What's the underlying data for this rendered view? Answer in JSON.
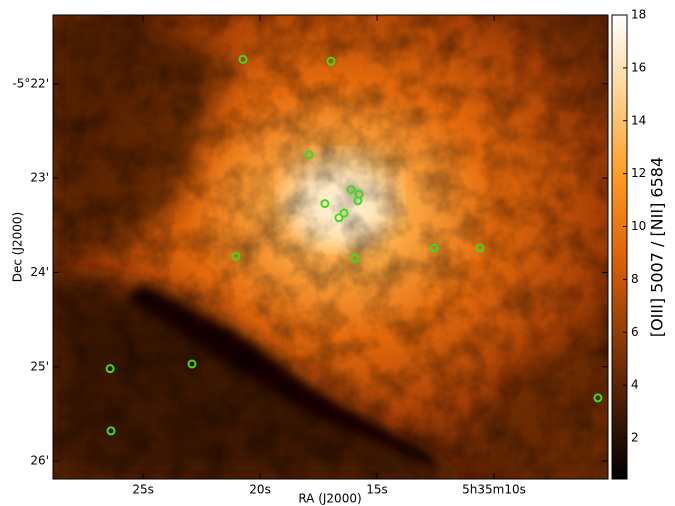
{
  "chart_data": {
    "type": "image",
    "x_label": "RA (J2000)",
    "y_label": "Dec (J2000)",
    "colorbar_label": "[OIII] 5007 / [NII] 6584",
    "xlim": [
      28.85,
      5.13
    ],
    "xticks": [
      {
        "value": 25,
        "label": "25s"
      },
      {
        "value": 20,
        "label": "20s"
      },
      {
        "value": 15,
        "label": "15s"
      },
      {
        "value": 10,
        "label": "5h35m10s"
      }
    ],
    "ylim": [
      -26.19,
      -21.27
    ],
    "yticks": [
      {
        "value": -22,
        "label": "-5°22'"
      },
      {
        "value": -23,
        "label": "23'"
      },
      {
        "value": -24,
        "label": "24'"
      },
      {
        "value": -25,
        "label": "25'"
      },
      {
        "value": -26,
        "label": "26'"
      }
    ],
    "clim": [
      0.45,
      18
    ],
    "cticks": [
      2,
      4,
      6,
      8,
      10,
      12,
      14,
      16,
      18
    ],
    "markers": {
      "color": "#3ddc1e",
      "x": [
        20.73,
        16.97,
        17.91,
        16.12,
        15.77,
        15.82,
        17.23,
        16.41,
        16.63,
        15.94,
        21.03,
        12.57,
        10.6,
        26.41,
        22.91,
        26.37,
        5.56
      ],
      "y": [
        -21.74,
        -21.76,
        -22.75,
        -23.12,
        -23.17,
        -23.24,
        -23.27,
        -23.37,
        -23.42,
        -23.85,
        -23.83,
        -23.74,
        -23.74,
        -25.02,
        -24.97,
        -25.68,
        -25.33
      ]
    }
  }
}
